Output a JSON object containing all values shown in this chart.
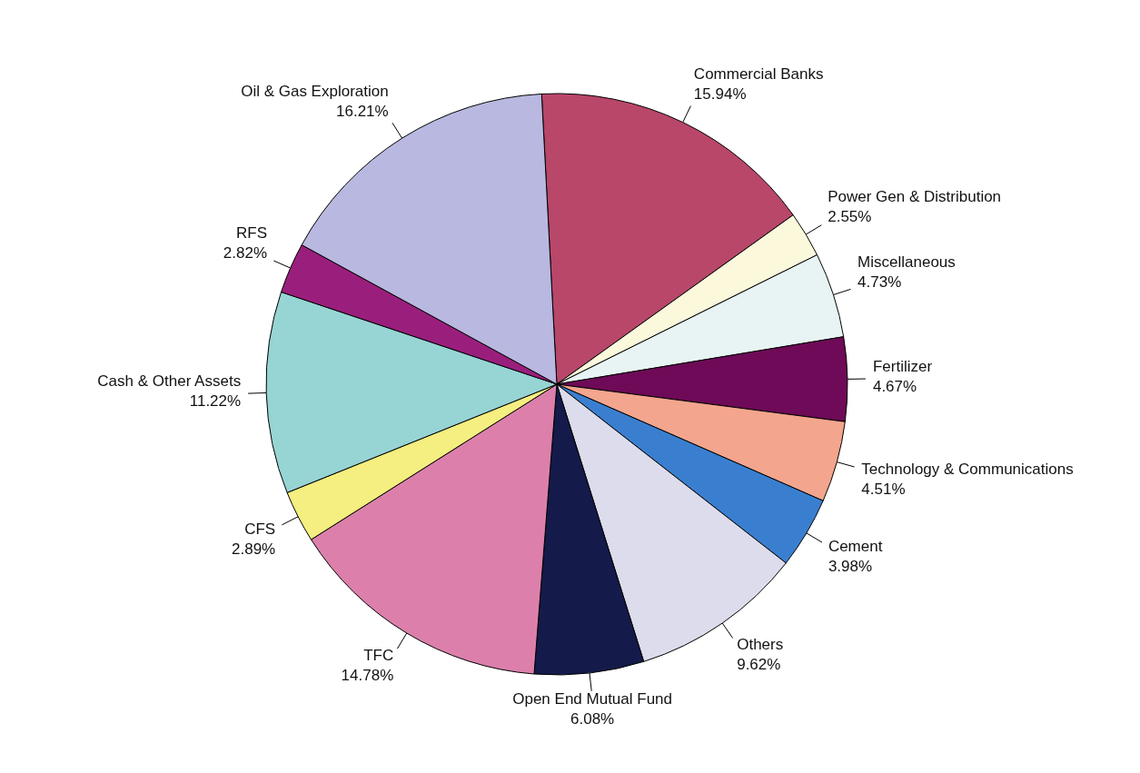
{
  "chart_data": {
    "type": "pie",
    "categories": [
      "Commercial Banks",
      "Power Gen & Distribution",
      "Miscellaneous",
      "Fertilizer",
      "Technology & Communications",
      "Cement",
      "Others",
      "Open End Mutual Fund",
      "TFC",
      "CFS",
      "Cash & Other Assets",
      "RFS",
      "Oil & Gas Exploration"
    ],
    "values": [
      15.94,
      2.55,
      4.73,
      4.67,
      4.51,
      3.98,
      9.62,
      6.08,
      14.78,
      2.89,
      11.22,
      2.82,
      16.21
    ],
    "value_labels": [
      "15.94%",
      "2.55%",
      "4.73%",
      "4.67%",
      "4.51%",
      "3.98%",
      "9.62%",
      "6.08%",
      "14.78%",
      "2.89%",
      "11.22%",
      "2.82%",
      "16.21%"
    ],
    "colors": [
      "#b8476a",
      "#fbf8dc",
      "#e8f4f4",
      "#6e0a57",
      "#f4a58e",
      "#3a7fcf",
      "#dcdcec",
      "#141a4a",
      "#dc80ab",
      "#f5ee80",
      "#97d4d4",
      "#9a1f7c",
      "#b8b8e0"
    ],
    "legend": false
  }
}
